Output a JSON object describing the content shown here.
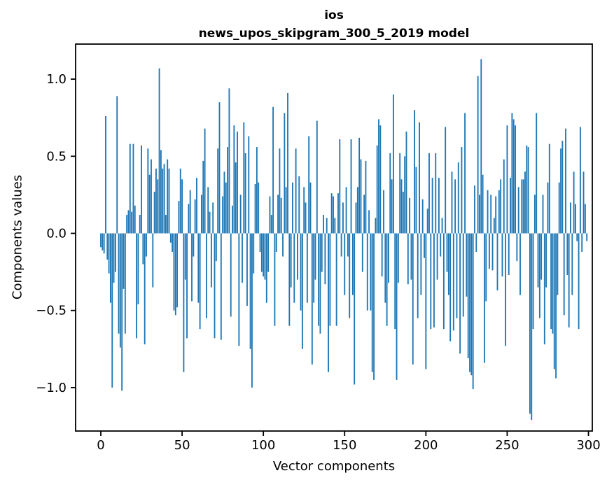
{
  "figure": {
    "title_line1": "ios",
    "title_line2": "news_upos_skipgram_300_5_2019 model",
    "xlabel": "Vector components",
    "ylabel": "Components values"
  },
  "chart_data": {
    "type": "bar",
    "title": "ios\nnews_upos_skipgram_300_5_2019 model",
    "xlabel": "Vector components",
    "ylabel": "Components values",
    "bar_color": "#1f77b4",
    "axis_color": "#000000",
    "background_color": "#ffffff",
    "grid": false,
    "legend": null,
    "n_components": 300,
    "x_range": [
      0,
      299
    ],
    "xlim": [
      -15.5,
      310.5
    ],
    "ylim": [
      -1.28,
      1.23
    ],
    "x_ticks": [
      0,
      50,
      100,
      150,
      200,
      250,
      300
    ],
    "y_ticks": [
      1.0,
      0.5,
      0.0,
      -0.5,
      -1.0
    ],
    "y_tick_labels": [
      "1.0",
      "0.5",
      "0.0",
      "−0.5",
      "−1.0"
    ],
    "values": [
      -0.09,
      -0.11,
      -0.13,
      0.76,
      -0.17,
      -0.26,
      -0.45,
      -1.0,
      -0.32,
      -0.25,
      0.89,
      -0.65,
      -0.74,
      -1.02,
      -0.36,
      -0.65,
      0.12,
      0.15,
      0.58,
      0.14,
      0.58,
      0.18,
      -0.68,
      -0.46,
      0.12,
      0.57,
      -0.2,
      -0.72,
      -0.15,
      0.55,
      0.38,
      0.48,
      -0.35,
      0.27,
      0.42,
      0.35,
      1.07,
      0.54,
      0.42,
      0.45,
      0.12,
      0.48,
      0.42,
      -0.06,
      -0.12,
      -0.5,
      -0.53,
      -0.48,
      0.21,
      0.42,
      0.35,
      -0.9,
      -0.3,
      -0.68,
      0.19,
      0.28,
      -0.44,
      -0.15,
      0.22,
      0.36,
      -0.45,
      -0.62,
      0.25,
      0.47,
      0.68,
      -0.55,
      0.3,
      0.14,
      -0.35,
      0.2,
      -0.68,
      -0.18,
      0.55,
      0.85,
      -0.69,
      0.24,
      0.4,
      0.33,
      0.56,
      0.94,
      -0.54,
      0.18,
      0.7,
      0.46,
      0.66,
      -0.73,
      0.25,
      -0.32,
      0.72,
      0.52,
      -0.47,
      0.63,
      -0.75,
      -1.0,
      -0.26,
      0.32,
      0.56,
      0.33,
      -0.12,
      -0.25,
      -0.28,
      -0.3,
      -0.45,
      -0.25,
      0.24,
      0.12,
      0.82,
      -0.6,
      -0.12,
      0.25,
      0.55,
      0.23,
      -0.15,
      0.78,
      0.3,
      0.91,
      -0.6,
      -0.35,
      0.33,
      -0.45,
      0.55,
      -0.3,
      0.37,
      -0.5,
      -0.75,
      0.3,
      0.2,
      -0.45,
      0.63,
      0.33,
      -0.85,
      -0.45,
      -0.3,
      0.73,
      -0.6,
      -0.65,
      -0.25,
      0.12,
      -0.33,
      0.1,
      -0.9,
      -0.6,
      0.26,
      0.24,
      0.1,
      -0.6,
      0.26,
      0.61,
      -0.15,
      0.2,
      -0.4,
      0.3,
      -0.15,
      -0.55,
      0.61,
      -0.4,
      -0.98,
      0.2,
      0.3,
      0.62,
      0.48,
      -0.25,
      0.25,
      0.47,
      -0.5,
      0.15,
      -0.5,
      -0.9,
      -0.95,
      0.1,
      0.57,
      0.74,
      0.7,
      -0.28,
      0.28,
      -0.45,
      -0.6,
      -0.32,
      0.52,
      0.35,
      0.9,
      -0.62,
      -0.95,
      -0.32,
      0.52,
      0.35,
      0.27,
      0.5,
      0.66,
      -0.33,
      0.23,
      -0.3,
      -0.85,
      0.8,
      0.43,
      -0.55,
      0.72,
      -0.4,
      0.22,
      -0.16,
      -0.88,
      0.16,
      0.52,
      -0.62,
      0.36,
      -0.61,
      0.52,
      -0.3,
      0.36,
      -0.15,
      0.1,
      -0.62,
      0.69,
      -0.25,
      -0.4,
      -0.7,
      0.4,
      -0.63,
      0.35,
      -0.55,
      0.46,
      -0.78,
      0.56,
      -0.54,
      0.78,
      -0.41,
      -0.81,
      -0.9,
      -0.92,
      -1.01,
      0.31,
      -0.12,
      1.02,
      0.25,
      1.13,
      0.38,
      -0.84,
      -0.44,
      0.28,
      -0.23,
      0.25,
      -0.24,
      0.1,
      0.24,
      -0.37,
      0.28,
      0.35,
      -0.28,
      0.48,
      -0.73,
      0.7,
      -0.27,
      0.36,
      0.78,
      0.74,
      0.7,
      -0.18,
      0.3,
      -0.4,
      0.35,
      0.35,
      0.4,
      0.57,
      0.56,
      -1.17,
      -1.21,
      -0.62,
      0.25,
      0.78,
      -0.35,
      -0.55,
      -0.3,
      0.25,
      -0.72,
      -0.35,
      0.33,
      0.58,
      -0.62,
      -0.65,
      -0.88,
      -0.94,
      -0.4,
      0.33,
      0.55,
      0.6,
      -0.53,
      0.68,
      -0.27,
      -0.61,
      0.2,
      -0.4,
      0.4,
      0.19,
      -0.05,
      -0.62,
      0.69,
      -0.12,
      0.4,
      0.19,
      -0.05
    ]
  }
}
